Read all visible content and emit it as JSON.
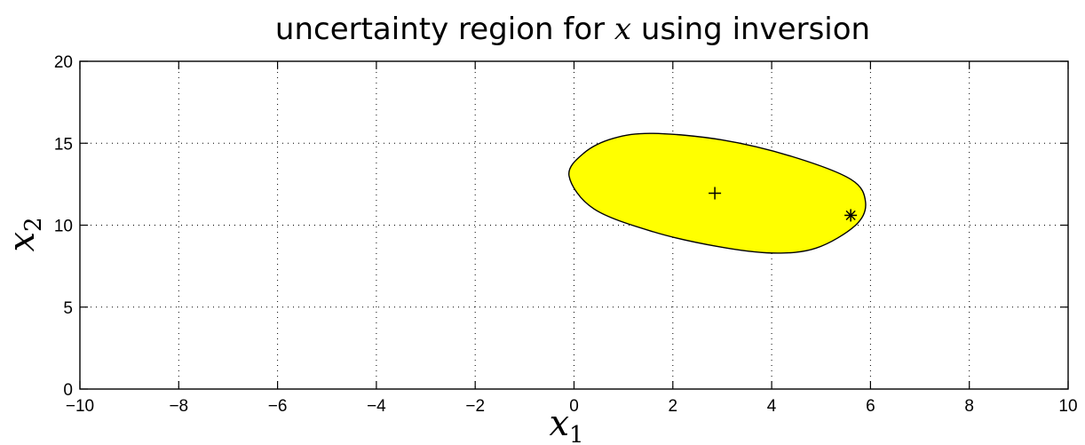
{
  "chart_data": {
    "type": "scatter",
    "title": {
      "prefix": "uncertainty region for ",
      "math": "x",
      "suffix": " using inversion"
    },
    "xlabel": {
      "base": "x",
      "sub": "1"
    },
    "ylabel": {
      "base": "x",
      "sub": "2"
    },
    "xlim": [
      -10,
      10
    ],
    "ylim": [
      0,
      20
    ],
    "xticks": [
      -10,
      -8,
      -6,
      -4,
      -2,
      0,
      2,
      4,
      6,
      8,
      10
    ],
    "yticks": [
      0,
      5,
      10,
      15,
      20
    ],
    "xtick_labels": [
      "−10",
      "−8",
      "−6",
      "−4",
      "−2",
      "0",
      "2",
      "4",
      "6",
      "8",
      "10"
    ],
    "ytick_labels": [
      "0",
      "5",
      "10",
      "15",
      "20"
    ],
    "grid": true,
    "region": {
      "shape": "ellipse",
      "fill_color": "#ffff00",
      "edge_color": "#000000",
      "boundary": [
        [
          -0.1,
          13.0
        ],
        [
          0.2,
          14.4
        ],
        [
          0.8,
          15.3
        ],
        [
          1.6,
          15.6
        ],
        [
          3.0,
          15.2
        ],
        [
          4.4,
          14.2
        ],
        [
          5.6,
          12.8
        ],
        [
          5.9,
          11.4
        ],
        [
          5.7,
          10.0
        ],
        [
          4.9,
          8.6
        ],
        [
          4.0,
          8.3
        ],
        [
          2.9,
          8.7
        ],
        [
          1.6,
          9.6
        ],
        [
          0.4,
          11.0
        ]
      ]
    },
    "points": [
      {
        "name": "center",
        "marker": "plus",
        "x": 2.85,
        "y": 11.95
      },
      {
        "name": "point",
        "marker": "asterisk",
        "x": 5.6,
        "y": 10.6
      }
    ]
  }
}
